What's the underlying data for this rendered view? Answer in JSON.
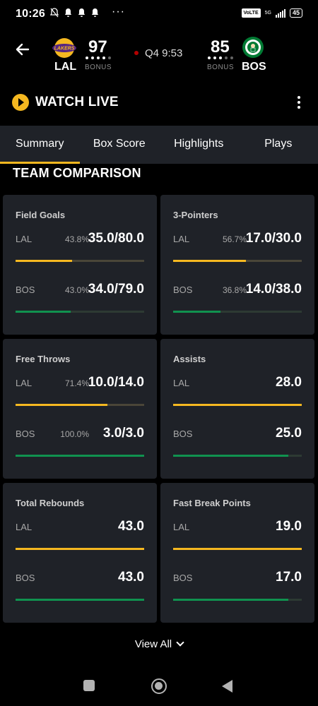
{
  "status_bar": {
    "time": "10:26",
    "network": "5G",
    "volte": "VoLTE",
    "battery": "45"
  },
  "game": {
    "home_team": {
      "abbr": "LAL",
      "score": "97",
      "bonus": "BONUS",
      "logo_text": "LAKERS",
      "color": "#552583"
    },
    "away_team": {
      "abbr": "BOS",
      "score": "85",
      "bonus": "BONUS",
      "color": "#007A33"
    },
    "clock": "Q4 9:53"
  },
  "watch_live": {
    "label": "WATCH LIVE"
  },
  "tabs": [
    {
      "label": "Summary",
      "active": true
    },
    {
      "label": "Box Score",
      "active": false
    },
    {
      "label": "Highlights",
      "active": false
    },
    {
      "label": "Plays",
      "active": false
    }
  ],
  "section_title": "TEAM COMPARISON",
  "comparison": [
    {
      "title": "Field Goals",
      "rows": [
        {
          "team": "LAL",
          "pct": "43.8%",
          "value": "35.0/80.0",
          "fill": 0.438
        },
        {
          "team": "BOS",
          "pct": "43.0%",
          "value": "34.0/79.0",
          "fill": 0.43
        }
      ]
    },
    {
      "title": "3-Pointers",
      "rows": [
        {
          "team": "LAL",
          "pct": "56.7%",
          "value": "17.0/30.0",
          "fill": 0.567
        },
        {
          "team": "BOS",
          "pct": "36.8%",
          "value": "14.0/38.0",
          "fill": 0.368
        }
      ]
    },
    {
      "title": "Free Throws",
      "rows": [
        {
          "team": "LAL",
          "pct": "71.4%",
          "value": "10.0/14.0",
          "fill": 0.714
        },
        {
          "team": "BOS",
          "pct": "100.0%",
          "value": "3.0/3.0",
          "fill": 1.0
        }
      ]
    },
    {
      "title": "Assists",
      "rows": [
        {
          "team": "LAL",
          "pct": "",
          "value": "28.0",
          "fill": 1.0
        },
        {
          "team": "BOS",
          "pct": "",
          "value": "25.0",
          "fill": 0.893
        }
      ]
    },
    {
      "title": "Total Rebounds",
      "rows": [
        {
          "team": "LAL",
          "pct": "",
          "value": "43.0",
          "fill": 1.0
        },
        {
          "team": "BOS",
          "pct": "",
          "value": "43.0",
          "fill": 1.0
        }
      ]
    },
    {
      "title": "Fast Break Points",
      "rows": [
        {
          "team": "LAL",
          "pct": "",
          "value": "19.0",
          "fill": 1.0
        },
        {
          "team": "BOS",
          "pct": "",
          "value": "17.0",
          "fill": 0.895
        }
      ]
    }
  ],
  "view_all": {
    "label": "View All"
  },
  "colors": {
    "accent": "#f5b820",
    "bos_green": "#10924f",
    "card_bg": "#1f2228"
  },
  "nav": {
    "icons": [
      "recents-icon",
      "home-icon",
      "back-icon"
    ]
  }
}
